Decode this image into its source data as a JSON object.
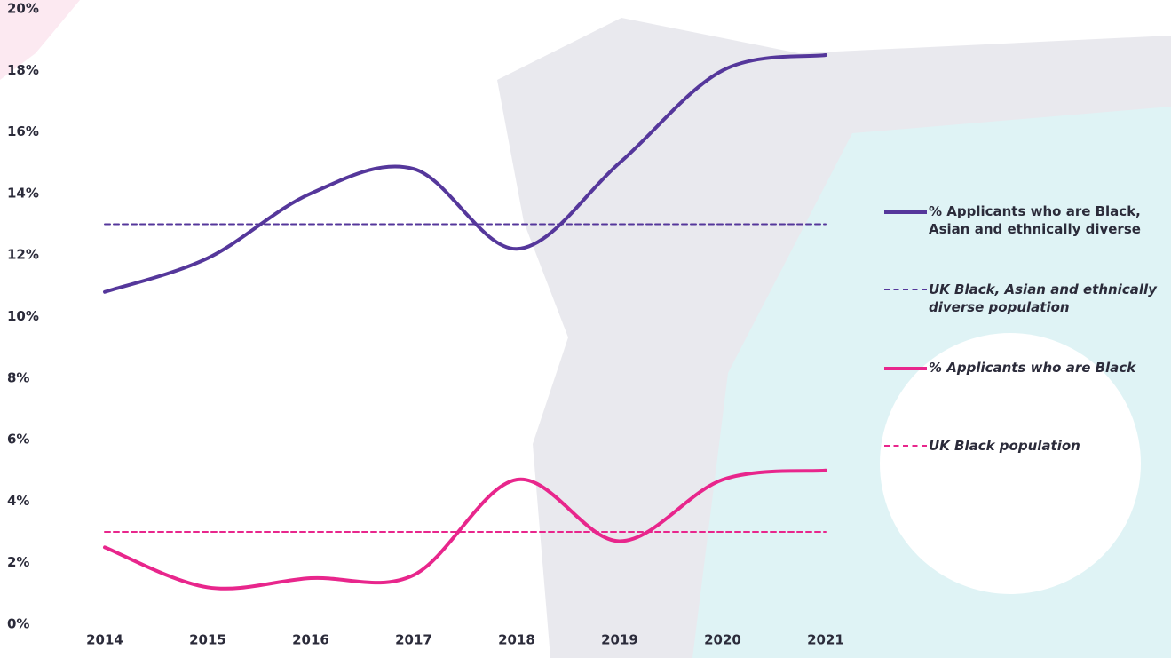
{
  "chart_data": {
    "type": "line",
    "categories": [
      "2014",
      "2015",
      "2016",
      "2017",
      "2018",
      "2019",
      "2020",
      "2021"
    ],
    "series": [
      {
        "name": "% Applicants who are Black, Asian and ethnically diverse",
        "color": "#55379b",
        "dashed": false,
        "values": [
          10.8,
          11.9,
          14.0,
          14.8,
          12.2,
          15.0,
          18.0,
          18.5
        ]
      },
      {
        "name": "UK Black, Asian and ethnically diverse population",
        "color": "#55379b",
        "dashed": true,
        "values": [
          13,
          13,
          13,
          13,
          13,
          13,
          13,
          13
        ]
      },
      {
        "name": "% Applicants who are Black",
        "color": "#e8268c",
        "dashed": false,
        "values": [
          2.5,
          1.2,
          1.5,
          1.6,
          4.7,
          2.7,
          4.7,
          5.0
        ]
      },
      {
        "name": "UK Black population",
        "color": "#e8268c",
        "dashed": true,
        "values": [
          3,
          3,
          3,
          3,
          3,
          3,
          3,
          3
        ]
      }
    ],
    "ylim": [
      0,
      20
    ],
    "yticks": [
      {
        "value": 0,
        "label": "0%"
      },
      {
        "value": 2,
        "label": "2%"
      },
      {
        "value": 4,
        "label": "4%"
      },
      {
        "value": 6,
        "label": "6%"
      },
      {
        "value": 8,
        "label": "8%"
      },
      {
        "value": 10,
        "label": "10%"
      },
      {
        "value": 12,
        "label": "12%"
      },
      {
        "value": 14,
        "label": "14%"
      },
      {
        "value": 16,
        "label": "16%"
      },
      {
        "value": 18,
        "label": "18%"
      },
      {
        "value": 20,
        "label": "20%"
      }
    ],
    "legend": "right"
  }
}
